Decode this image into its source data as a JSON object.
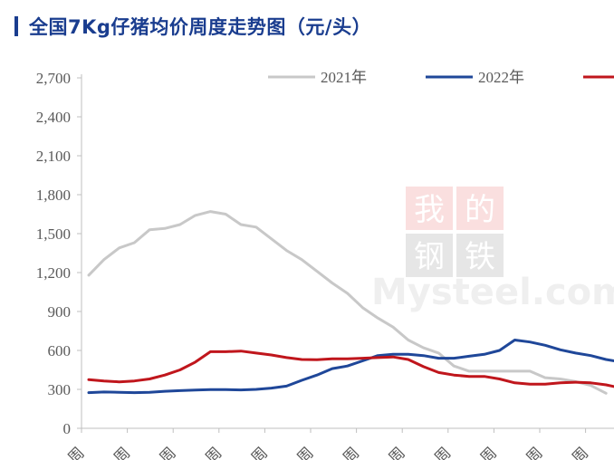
{
  "title": "全国7Kg仔猪均价周度走势图（元/头）",
  "watermark": {
    "cn_line1": "我的",
    "cn_line2": "钢铁",
    "en": "Mysteel.com"
  },
  "chart_data": {
    "type": "line",
    "title": "全国7Kg仔猪均价周度走势图（元/头）",
    "xlabel": "",
    "ylabel": "",
    "ylim": [
      0,
      2700
    ],
    "yticks": [
      0,
      300,
      600,
      900,
      1200,
      1500,
      1800,
      2100,
      2400,
      2700
    ],
    "ytick_labels": [
      "0",
      "300",
      "600",
      "900",
      "1,200",
      "1,500",
      "1,800",
      "2,100",
      "2,400",
      "2,700"
    ],
    "x_tick_labels": [
      "周",
      "周",
      "周",
      "周",
      "周",
      "周",
      "周",
      "周",
      "周",
      "周",
      "周",
      "周"
    ],
    "grid": false,
    "legend_position": "top",
    "series": [
      {
        "name": "2021年",
        "color": "#c8c8c8",
        "values": [
          1180,
          1300,
          1390,
          1430,
          1530,
          1540,
          1570,
          1640,
          1670,
          1650,
          1570,
          1550,
          1460,
          1370,
          1300,
          1210,
          1120,
          1040,
          930,
          850,
          780,
          680,
          620,
          580,
          480,
          440,
          440,
          440,
          440,
          440,
          390,
          380,
          360,
          330,
          270
        ]
      },
      {
        "name": "2022年",
        "color": "#1f4799",
        "values": [
          275,
          280,
          278,
          275,
          278,
          285,
          290,
          295,
          298,
          298,
          296,
          300,
          310,
          325,
          370,
          410,
          460,
          480,
          520,
          560,
          570,
          570,
          560,
          540,
          540,
          555,
          570,
          600,
          680,
          665,
          640,
          605,
          580,
          560,
          530,
          510
        ]
      },
      {
        "name": "",
        "color": "#c0161c",
        "values": [
          375,
          365,
          358,
          365,
          380,
          410,
          450,
          510,
          590,
          590,
          595,
          580,
          565,
          545,
          530,
          528,
          535,
          535,
          540,
          545,
          550,
          530,
          475,
          430,
          410,
          400,
          400,
          380,
          350,
          340,
          340,
          350,
          355,
          350,
          335,
          310
        ]
      }
    ]
  }
}
